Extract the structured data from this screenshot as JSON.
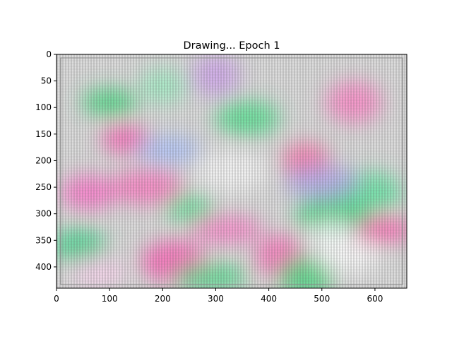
{
  "chart_data": {
    "type": "heatmap",
    "title": "Drawing... Epoch 1",
    "xlabel": "",
    "ylabel": "",
    "xlim": [
      0,
      660
    ],
    "ylim": [
      440,
      0
    ],
    "y_inverted": true,
    "grid": false,
    "x_ticks": [
      0,
      100,
      200,
      300,
      400,
      500,
      600
    ],
    "y_ticks": [
      0,
      50,
      100,
      150,
      200,
      250,
      300,
      350,
      400
    ],
    "blobs": [
      {
        "x": 130,
        "y": 160,
        "color": "#ff5ab4"
      },
      {
        "x": 60,
        "y": 260,
        "color": "#ff6ec8"
      },
      {
        "x": 220,
        "y": 390,
        "color": "#ff5ab4"
      },
      {
        "x": 320,
        "y": 330,
        "color": "#ff7cc8"
      },
      {
        "x": 470,
        "y": 200,
        "color": "#ff6aa6"
      },
      {
        "x": 560,
        "y": 90,
        "color": "#ff82c6"
      },
      {
        "x": 610,
        "y": 330,
        "color": "#ff5fb0"
      },
      {
        "x": 170,
        "y": 250,
        "color": "#ff74c0"
      },
      {
        "x": 420,
        "y": 380,
        "color": "#ff6ab8"
      },
      {
        "x": 100,
        "y": 90,
        "color": "#3ed67a"
      },
      {
        "x": 360,
        "y": 120,
        "color": "#4ae08a"
      },
      {
        "x": 520,
        "y": 300,
        "color": "#3ad680"
      },
      {
        "x": 250,
        "y": 290,
        "color": "#55e095"
      },
      {
        "x": 40,
        "y": 360,
        "color": "#42d48c"
      },
      {
        "x": 590,
        "y": 260,
        "color": "#5ae39c"
      },
      {
        "x": 290,
        "y": 420,
        "color": "#48da85"
      },
      {
        "x": 200,
        "y": 60,
        "color": "#9aeec0"
      },
      {
        "x": 470,
        "y": 420,
        "color": "#3ed67a"
      },
      {
        "x": 210,
        "y": 180,
        "color": "#aac0ff"
      },
      {
        "x": 500,
        "y": 240,
        "color": "#b0a8ee"
      },
      {
        "x": 300,
        "y": 40,
        "color": "#cfa0ee"
      },
      {
        "x": 80,
        "y": 410,
        "color": "#ffd0f0"
      },
      {
        "x": 550,
        "y": 380,
        "color": "#ffffff"
      },
      {
        "x": 330,
        "y": 220,
        "color": "#fafafa"
      },
      {
        "x": 520,
        "y": 340,
        "color": "#ffffff"
      }
    ]
  }
}
